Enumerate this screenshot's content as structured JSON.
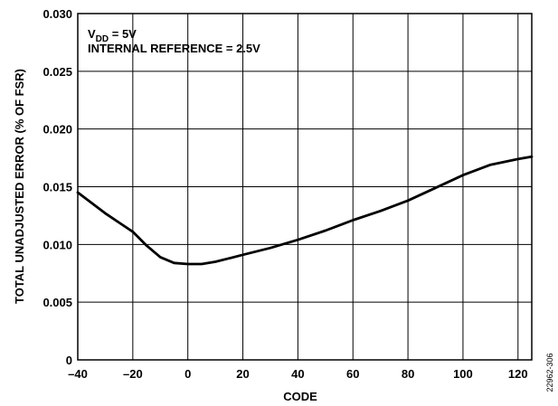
{
  "chart_data": {
    "type": "line",
    "xlabel": "CODE",
    "ylabel": "TOTAL UNADJUSTED ERROR (% OF FSR)",
    "xlim": [
      -40,
      125
    ],
    "ylim": [
      0,
      0.03
    ],
    "x_ticks": [
      -40,
      -20,
      0,
      20,
      40,
      60,
      80,
      100,
      120
    ],
    "x_tick_labels": [
      "–40",
      "–20",
      "0",
      "20",
      "40",
      "60",
      "80",
      "100",
      "120"
    ],
    "y_ticks": [
      0,
      0.005,
      0.01,
      0.015,
      0.02,
      0.025,
      0.03
    ],
    "y_tick_labels": [
      "0",
      "0.005",
      "0.010",
      "0.015",
      "0.020",
      "0.025",
      "0.030"
    ],
    "grid": true,
    "annotations": {
      "vdd_prefix": "V",
      "vdd_sub": "DD",
      "vdd_rest": " = 5V",
      "reference": "INTERNAL REFERENCE = 2.5V"
    },
    "figure_id": "22962-306",
    "series": [
      {
        "x": [
          -40,
          -35,
          -30,
          -25,
          -20,
          -15,
          -10,
          -5,
          0,
          5,
          10,
          15,
          20,
          30,
          40,
          50,
          60,
          70,
          80,
          90,
          100,
          110,
          120,
          125
        ],
        "y": [
          0.0145,
          0.0136,
          0.0127,
          0.0119,
          0.0111,
          0.0099,
          0.0089,
          0.0084,
          0.0083,
          0.0083,
          0.0085,
          0.0088,
          0.0091,
          0.0097,
          0.0104,
          0.0112,
          0.0121,
          0.0129,
          0.0138,
          0.0149,
          0.016,
          0.0169,
          0.0174,
          0.0176
        ]
      }
    ]
  }
}
